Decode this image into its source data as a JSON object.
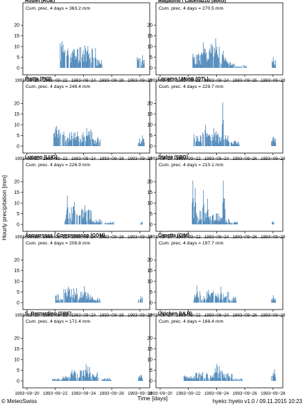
{
  "chart_data": {
    "type": "bar",
    "ylabel": "Hourly precipitation [mm]",
    "xlabel": "Time [days]",
    "ylim": [
      0,
      24
    ],
    "yticks": [
      0,
      5,
      10,
      15,
      20
    ],
    "xlim": [
      "1993-09-20 00:00",
      "1993-09-28 12:00"
    ],
    "xticks": [
      "1993−09−20",
      "1993−09−22",
      "1993−09−24",
      "1993−09−26",
      "1993−09−28"
    ],
    "bar_color": "#4a86b8",
    "panels": [
      {
        "title": "Robiéi (ROE)",
        "note": "Cum. prec. 4 days = 363.2 mm",
        "seed": 11,
        "intensity": 1.0,
        "profile": [
          [
            2.35,
            2.95,
            9
          ],
          [
            3.0,
            3.6,
            7
          ],
          [
            3.6,
            4.3,
            8
          ],
          [
            4.3,
            4.9,
            7
          ],
          [
            4.9,
            5.3,
            3
          ],
          [
            7.8,
            8.3,
            4
          ]
        ],
        "peaks": [
          [
            2.45,
            12.5
          ],
          [
            4.1,
            10.5
          ],
          [
            4.3,
            10.2
          ],
          [
            8.15,
            6.0
          ]
        ]
      },
      {
        "title": "Magadino / Cadenazzo (MAG)",
        "note": "Cum. prec. 4 days = 270.5 mm",
        "seed": 23,
        "intensity": 1.0,
        "profile": [
          [
            2.3,
            2.9,
            5
          ],
          [
            2.9,
            3.6,
            7
          ],
          [
            3.6,
            4.2,
            8
          ],
          [
            4.2,
            4.8,
            5
          ],
          [
            4.8,
            5.3,
            2
          ],
          [
            5.4,
            6.1,
            1
          ],
          [
            7.9,
            8.2,
            3
          ]
        ],
        "peaks": [
          [
            3.05,
            12.0
          ],
          [
            3.9,
            13.8
          ],
          [
            4.45,
            8.0
          ],
          [
            8.0,
            5.0
          ]
        ]
      },
      {
        "title": "Piotta (PIO)",
        "note": "Cum. prec. 4 days = 249.4 mm",
        "seed": 37,
        "intensity": 1.0,
        "profile": [
          [
            1.9,
            2.4,
            6
          ],
          [
            2.5,
            3.2,
            5
          ],
          [
            3.2,
            3.9,
            5
          ],
          [
            3.9,
            4.6,
            6
          ],
          [
            4.6,
            5.2,
            3
          ],
          [
            7.9,
            8.3,
            3
          ]
        ],
        "peaks": [
          [
            2.0,
            8.8
          ],
          [
            2.1,
            9.5
          ],
          [
            4.2,
            8.5
          ],
          [
            8.15,
            5.0
          ]
        ]
      },
      {
        "title": "Locarno / Monti (OTL)",
        "note": "Cum. prec. 4 days = 229.7 mm",
        "seed": 41,
        "intensity": 1.0,
        "profile": [
          [
            2.4,
            3.0,
            4
          ],
          [
            3.0,
            3.7,
            6
          ],
          [
            3.7,
            4.3,
            5
          ],
          [
            4.3,
            5.0,
            4
          ],
          [
            5.0,
            5.6,
            2
          ],
          [
            7.9,
            8.2,
            3
          ]
        ],
        "peaks": [
          [
            4.4,
            20.5
          ],
          [
            3.2,
            10.0
          ],
          [
            3.8,
            8.5
          ],
          [
            8.0,
            4.5
          ]
        ]
      },
      {
        "title": "Lugano (LUG)",
        "note": "Cum. prec. 4 days = 226.9 mm",
        "seed": 53,
        "intensity": 1.0,
        "profile": [
          [
            2.7,
            3.3,
            6
          ],
          [
            3.3,
            4.0,
            6
          ],
          [
            4.0,
            4.6,
            5
          ],
          [
            4.6,
            5.3,
            2
          ],
          [
            5.5,
            6.2,
            1
          ],
          [
            8.0,
            8.2,
            1
          ]
        ],
        "peaks": [
          [
            2.85,
            13.5
          ],
          [
            3.35,
            10.5
          ],
          [
            4.1,
            9.0
          ]
        ]
      },
      {
        "title": "Stabio (SBO)",
        "note": "Cum. prec. 4 days = 210.1 mm",
        "seed": 67,
        "intensity": 1.0,
        "profile": [
          [
            2.3,
            2.9,
            5
          ],
          [
            2.9,
            3.5,
            4
          ],
          [
            3.5,
            4.2,
            4
          ],
          [
            4.2,
            4.9,
            3
          ],
          [
            4.9,
            5.5,
            1
          ],
          [
            7.9,
            8.1,
            1
          ]
        ],
        "peaks": [
          [
            2.3,
            20.5
          ],
          [
            2.45,
            17.0
          ],
          [
            3.05,
            16.0
          ],
          [
            3.35,
            12.0
          ],
          [
            4.45,
            20.5
          ],
          [
            4.55,
            12.0
          ]
        ]
      },
      {
        "title": "Acquarossa / Comprovasco (COM)",
        "note": "Cum. prec. 4 days = 208.8 mm",
        "seed": 79,
        "intensity": 1.0,
        "profile": [
          [
            2.0,
            2.6,
            3
          ],
          [
            2.6,
            3.3,
            5
          ],
          [
            3.3,
            4.0,
            4
          ],
          [
            4.0,
            4.6,
            5
          ],
          [
            4.6,
            5.2,
            2
          ],
          [
            7.9,
            8.2,
            2
          ]
        ],
        "peaks": [
          [
            2.9,
            7.5
          ],
          [
            3.5,
            6.8
          ],
          [
            4.05,
            7.8
          ],
          [
            8.05,
            3.2
          ]
        ]
      },
      {
        "title": "Cimetta (CIM)",
        "note": "Cum. prec. 4 days = 197.7 mm",
        "seed": 83,
        "intensity": 1.0,
        "profile": [
          [
            2.4,
            3.0,
            4
          ],
          [
            3.0,
            3.7,
            4
          ],
          [
            3.7,
            4.3,
            4
          ],
          [
            4.3,
            4.9,
            4
          ],
          [
            4.9,
            5.4,
            2
          ],
          [
            7.9,
            8.2,
            2
          ]
        ],
        "peaks": [
          [
            2.6,
            8.0
          ],
          [
            4.3,
            7.5
          ],
          [
            3.4,
            6.0
          ],
          [
            8.0,
            3.5
          ]
        ]
      },
      {
        "title": "S. Bernardino (SBE)",
        "note": "Cum. prec. 4 days = 171.4 mm",
        "seed": 97,
        "intensity": 1.0,
        "profile": [
          [
            1.8,
            2.5,
            1
          ],
          [
            2.5,
            3.1,
            2
          ],
          [
            3.1,
            3.8,
            4
          ],
          [
            3.8,
            4.5,
            5
          ],
          [
            4.5,
            5.1,
            3
          ],
          [
            5.3,
            6.0,
            1
          ],
          [
            7.9,
            8.2,
            2
          ]
        ],
        "peaks": [
          [
            4.15,
            8.0
          ],
          [
            4.4,
            6.5
          ],
          [
            8.05,
            2.8
          ]
        ]
      },
      {
        "title": "Ulrichen (ULR)",
        "note": "Cum. prec. 4 days = 168.4 mm",
        "seed": 103,
        "intensity": 1.0,
        "profile": [
          [
            1.7,
            2.5,
            2
          ],
          [
            2.5,
            3.2,
            3
          ],
          [
            3.2,
            3.8,
            3
          ],
          [
            3.8,
            4.5,
            5
          ],
          [
            4.5,
            5.1,
            3
          ],
          [
            5.1,
            5.8,
            1
          ],
          [
            7.9,
            8.2,
            3
          ]
        ],
        "peaks": [
          [
            4.0,
            8.0
          ],
          [
            4.15,
            7.0
          ],
          [
            8.1,
            5.5
          ]
        ]
      }
    ]
  },
  "footer": {
    "logo": "© MeteoSwiss",
    "version": "hyeto::hyeto v1.0 / 09.11.2015 10:23"
  }
}
